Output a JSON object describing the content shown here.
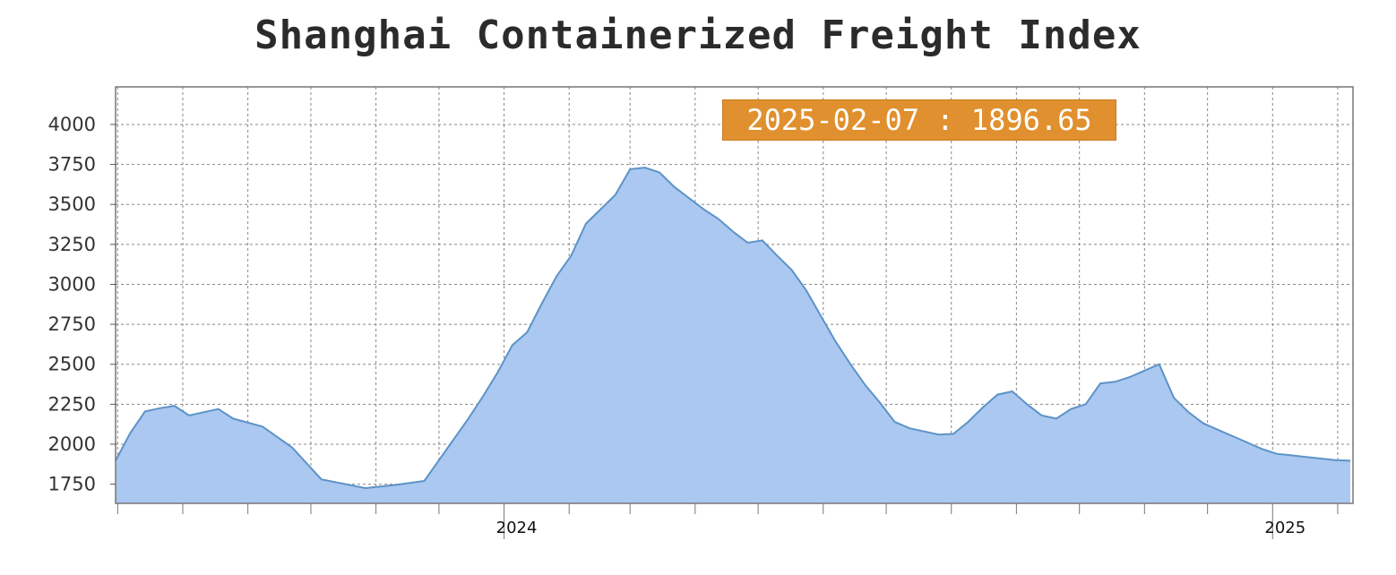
{
  "chart_data": {
    "type": "area",
    "title": "Shanghai Containerized Freight Index",
    "xlabel": "",
    "ylabel": "",
    "ylim": [
      1630,
      4235
    ],
    "yticks": [
      1750,
      2000,
      2250,
      2500,
      2750,
      3000,
      3250,
      3500,
      3750,
      4000
    ],
    "x_ticks_labeled": [
      "2024",
      "2025"
    ],
    "grid": true,
    "colors": {
      "fill": "#abc8f0",
      "line": "#5c93c8",
      "tooltip": "#e0902e",
      "grid": "#888888"
    },
    "tooltip": "2025-02-07 : 1896.65",
    "series": [
      {
        "x": [
          "2023-06-30",
          "2023-07-07",
          "2023-07-14",
          "2023-07-21",
          "2023-07-28",
          "2023-08-04",
          "2023-08-18",
          "2023-08-25",
          "2023-09-08",
          "2023-09-22",
          "2023-09-29",
          "2023-10-06",
          "2023-10-27",
          "2023-11-10",
          "2023-11-24",
          "2023-12-01",
          "2023-12-08",
          "2023-12-15",
          "2023-12-22",
          "2023-12-29",
          "2024-01-05",
          "2024-01-12",
          "2024-01-19",
          "2024-01-26",
          "2024-02-02",
          "2024-02-09",
          "2024-02-16",
          "2024-02-23",
          "2024-03-01",
          "2024-03-08",
          "2024-03-15",
          "2024-03-22",
          "2024-03-29",
          "2024-04-05",
          "2024-04-12",
          "2024-04-19",
          "2024-04-26",
          "2024-05-03",
          "2024-05-10",
          "2024-05-17",
          "2024-05-24",
          "2024-05-31",
          "2024-06-07",
          "2024-06-14",
          "2024-06-21",
          "2024-06-28",
          "2024-07-05",
          "2024-07-12",
          "2024-07-19",
          "2024-07-26",
          "2024-08-02",
          "2024-08-09",
          "2024-08-16",
          "2024-08-23",
          "2024-08-30",
          "2024-09-06",
          "2024-09-13",
          "2024-09-20",
          "2024-09-27",
          "2024-10-04",
          "2024-10-11",
          "2024-10-18",
          "2024-10-25",
          "2024-11-01",
          "2024-11-08",
          "2024-11-15",
          "2024-11-22",
          "2024-11-29",
          "2024-12-06",
          "2024-12-13",
          "2024-12-20",
          "2024-12-27",
          "2025-01-03",
          "2025-01-10",
          "2025-01-17",
          "2025-01-24",
          "2025-01-31",
          "2025-02-07"
        ],
        "values": [
          1897,
          2070,
          2205,
          2225,
          2240,
          2180,
          2220,
          2160,
          2110,
          1980,
          1880,
          1780,
          1725,
          1745,
          1770,
          1900,
          2030,
          2160,
          2300,
          2450,
          2620,
          2700,
          2880,
          3050,
          3180,
          3380,
          3470,
          3560,
          3720,
          3730,
          3700,
          3610,
          3540,
          3470,
          3410,
          3330,
          3260,
          3275,
          3180,
          3090,
          2960,
          2800,
          2640,
          2500,
          2370,
          2260,
          2140,
          2100,
          2080,
          2060,
          2065,
          2140,
          2230,
          2310,
          2330,
          2250,
          2180,
          2160,
          2220,
          2250,
          2380,
          2390,
          2420,
          2460,
          2500,
          2290,
          2200,
          2130,
          2090,
          2050,
          2010,
          1970,
          1940,
          1930,
          1920,
          1910,
          1900,
          1896.65
        ]
      }
    ]
  }
}
